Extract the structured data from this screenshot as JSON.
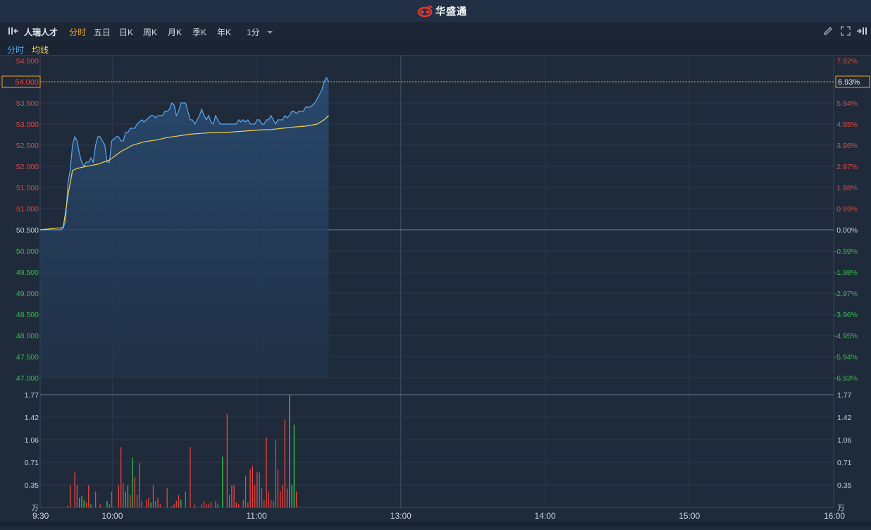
{
  "app": {
    "brand": "华盛通"
  },
  "toolbar": {
    "stock_name": "人瑞人才",
    "tabs": [
      {
        "label": "分时",
        "active": true
      },
      {
        "label": "五日",
        "active": false
      },
      {
        "label": "日K",
        "active": false
      },
      {
        "label": "周K",
        "active": false
      },
      {
        "label": "月K",
        "active": false
      },
      {
        "label": "季K",
        "active": false
      },
      {
        "label": "年K",
        "active": false
      }
    ],
    "interval": "1分",
    "icons": [
      "collapse-left-icon",
      "pencil-icon",
      "fullscreen-icon",
      "expand-right-icon"
    ]
  },
  "subbar": {
    "price_label": "分时",
    "avg_label": "均线"
  },
  "colors": {
    "background": "#1f2a3a",
    "up": "#f0443d",
    "down": "#33c24d",
    "price_line": "#5aa9f0",
    "avg_line": "#f2d04a",
    "highlight": "#f5a623"
  },
  "chart_data": {
    "type": "line",
    "price_axis": {
      "labels": [
        "54.500",
        "54.000",
        "53.500",
        "53.000",
        "52.500",
        "52.000",
        "51.500",
        "51.000",
        "50.500",
        "50.000",
        "49.500",
        "49.000",
        "48.500",
        "48.000",
        "47.500",
        "47.000"
      ],
      "ylim": [
        46.8,
        54.7
      ],
      "prev_close": 50.5,
      "current_label": "54.000"
    },
    "pct_axis": {
      "labels": [
        "7.92%",
        "6.93%",
        "5.94%",
        "4.95%",
        "3.96%",
        "2.97%",
        "1.98%",
        "0.99%",
        "0.00%",
        "-0.99%",
        "-1.98%",
        "-2.97%",
        "-3.96%",
        "-4.95%",
        "-5.94%",
        "-6.93%"
      ],
      "current_label": "6.93%"
    },
    "volume_axis": {
      "labels": [
        "1.77",
        "1.42",
        "1.06",
        "0.71",
        "0.35",
        "万"
      ],
      "ylim": [
        0,
        1.77
      ],
      "unit": "万"
    },
    "time_axis": {
      "labels": [
        "9:30",
        "10:00",
        "11:00",
        "13:00",
        "14:00",
        "15:00",
        "16:00"
      ]
    },
    "price": [
      [
        0,
        50.5
      ],
      [
        9,
        50.5
      ],
      [
        10,
        50.55
      ],
      [
        11,
        50.7
      ],
      [
        12,
        51.6
      ],
      [
        13,
        51.9
      ],
      [
        14,
        52.5
      ],
      [
        15,
        52.7
      ],
      [
        16,
        52.6
      ],
      [
        17,
        52.3
      ],
      [
        18,
        52.1
      ],
      [
        19,
        52.0
      ],
      [
        20,
        52.1
      ],
      [
        21,
        52.1
      ],
      [
        22,
        52.2
      ],
      [
        23,
        52.1
      ],
      [
        24,
        52.5
      ],
      [
        25,
        52.7
      ],
      [
        26,
        52.7
      ],
      [
        27,
        52.6
      ],
      [
        28,
        52.5
      ],
      [
        29,
        52.1
      ],
      [
        30,
        52.1
      ],
      [
        31,
        52.6
      ],
      [
        32,
        52.65
      ],
      [
        33,
        52.7
      ],
      [
        34,
        52.7
      ],
      [
        35,
        52.6
      ],
      [
        36,
        52.6
      ],
      [
        37,
        52.8
      ],
      [
        38,
        52.8
      ],
      [
        39,
        52.9
      ],
      [
        40,
        52.9
      ],
      [
        41,
        52.9
      ],
      [
        42,
        53.0
      ],
      [
        43,
        53.05
      ],
      [
        44,
        53.1
      ],
      [
        45,
        53.05
      ],
      [
        46,
        53.1
      ],
      [
        47,
        53.15
      ],
      [
        48,
        53.2
      ],
      [
        49,
        53.2
      ],
      [
        50,
        53.15
      ],
      [
        51,
        53.2
      ],
      [
        52,
        53.2
      ],
      [
        53,
        53.2
      ],
      [
        54,
        53.3
      ],
      [
        55,
        53.3
      ],
      [
        56,
        53.35
      ],
      [
        57,
        53.5
      ],
      [
        58,
        53.45
      ],
      [
        59,
        53.2
      ],
      [
        60,
        53.3
      ],
      [
        61,
        53.5
      ],
      [
        62,
        53.5
      ],
      [
        63,
        53.5
      ],
      [
        64,
        53.3
      ],
      [
        65,
        53.1
      ],
      [
        66,
        53.1
      ],
      [
        67,
        53.0
      ],
      [
        68,
        53.1
      ],
      [
        69,
        53.2
      ],
      [
        70,
        53.35
      ],
      [
        71,
        53.2
      ],
      [
        72,
        53.1
      ],
      [
        73,
        53.2
      ],
      [
        74,
        53.05
      ],
      [
        75,
        53.0
      ],
      [
        76,
        53.2
      ],
      [
        77,
        53.1
      ],
      [
        78,
        53.0
      ],
      [
        79,
        53.0
      ],
      [
        80,
        53.0
      ],
      [
        81,
        53.0
      ],
      [
        82,
        53.0
      ],
      [
        83,
        53.0
      ],
      [
        84,
        53.0
      ],
      [
        85,
        53.0
      ],
      [
        86,
        53.1
      ],
      [
        87,
        53.05
      ],
      [
        88,
        53.1
      ],
      [
        89,
        53.05
      ],
      [
        90,
        53.1
      ],
      [
        91,
        53.0
      ],
      [
        92,
        53.0
      ],
      [
        93,
        53.0
      ],
      [
        94,
        53.1
      ],
      [
        95,
        53.1
      ],
      [
        96,
        53.0
      ],
      [
        97,
        53.0
      ],
      [
        98,
        53.1
      ],
      [
        99,
        53.1
      ],
      [
        100,
        53.2
      ],
      [
        101,
        53.1
      ],
      [
        102,
        53.0
      ],
      [
        103,
        53.1
      ],
      [
        104,
        53.1
      ],
      [
        105,
        53.1
      ],
      [
        106,
        53.2
      ],
      [
        107,
        53.15
      ],
      [
        108,
        53.2
      ],
      [
        109,
        53.3
      ],
      [
        110,
        53.3
      ],
      [
        111,
        53.25
      ],
      [
        112,
        53.3
      ],
      [
        113,
        53.3
      ],
      [
        114,
        53.3
      ],
      [
        115,
        53.4
      ],
      [
        116,
        53.4
      ],
      [
        117,
        53.4
      ],
      [
        118,
        53.45
      ],
      [
        119,
        53.5
      ],
      [
        120,
        53.6
      ],
      [
        121,
        53.7
      ],
      [
        122,
        53.8
      ],
      [
        123,
        54.0
      ],
      [
        124,
        54.1
      ],
      [
        125,
        54.0
      ]
    ],
    "avg": [
      [
        0,
        50.5
      ],
      [
        10,
        50.55
      ],
      [
        12,
        51.3
      ],
      [
        14,
        51.9
      ],
      [
        16,
        51.95
      ],
      [
        20,
        52.0
      ],
      [
        25,
        52.05
      ],
      [
        30,
        52.15
      ],
      [
        35,
        52.35
      ],
      [
        40,
        52.5
      ],
      [
        45,
        52.58
      ],
      [
        50,
        52.62
      ],
      [
        55,
        52.68
      ],
      [
        60,
        52.72
      ],
      [
        65,
        52.76
      ],
      [
        70,
        52.78
      ],
      [
        75,
        52.8
      ],
      [
        80,
        52.8
      ],
      [
        85,
        52.82
      ],
      [
        90,
        52.84
      ],
      [
        95,
        52.86
      ],
      [
        100,
        52.87
      ],
      [
        105,
        52.9
      ],
      [
        110,
        52.93
      ],
      [
        115,
        52.95
      ],
      [
        120,
        53.0
      ],
      [
        123,
        53.1
      ],
      [
        125,
        53.2
      ]
    ],
    "volume": [
      [
        12,
        0.03,
        "up"
      ],
      [
        13,
        0.35,
        "up"
      ],
      [
        15,
        0.55,
        "up"
      ],
      [
        16,
        0.35,
        "up"
      ],
      [
        17,
        0.15,
        "down"
      ],
      [
        18,
        0.18,
        "down"
      ],
      [
        19,
        0.12,
        "down"
      ],
      [
        20,
        0.08,
        "up"
      ],
      [
        21,
        0.35,
        "up"
      ],
      [
        22,
        0.05,
        "down"
      ],
      [
        24,
        0.25,
        "up"
      ],
      [
        26,
        0.05,
        "up"
      ],
      [
        29,
        0.1,
        "down"
      ],
      [
        30,
        0.05,
        "up"
      ],
      [
        31,
        0.25,
        "up"
      ],
      [
        34,
        0.35,
        "up"
      ],
      [
        35,
        0.95,
        "up"
      ],
      [
        36,
        0.38,
        "up"
      ],
      [
        37,
        0.25,
        "down"
      ],
      [
        38,
        0.35,
        "down"
      ],
      [
        39,
        0.2,
        "up"
      ],
      [
        40,
        0.78,
        "down"
      ],
      [
        41,
        0.48,
        "up"
      ],
      [
        42,
        0.2,
        "up"
      ],
      [
        43,
        0.7,
        "up"
      ],
      [
        44,
        0.1,
        "up"
      ],
      [
        46,
        0.12,
        "up"
      ],
      [
        47,
        0.15,
        "up"
      ],
      [
        48,
        0.08,
        "down"
      ],
      [
        49,
        0.35,
        "up"
      ],
      [
        50,
        0.1,
        "up"
      ],
      [
        51,
        0.15,
        "up"
      ],
      [
        52,
        0.05,
        "up"
      ],
      [
        55,
        0.3,
        "up"
      ],
      [
        57,
        0.02,
        "up"
      ],
      [
        58,
        0.05,
        "up"
      ],
      [
        59,
        0.1,
        "up"
      ],
      [
        60,
        0.2,
        "up"
      ],
      [
        61,
        0.12,
        "down"
      ],
      [
        63,
        0.25,
        "up"
      ],
      [
        65,
        0.95,
        "up"
      ],
      [
        67,
        0.05,
        "up"
      ],
      [
        70,
        0.05,
        "up"
      ],
      [
        71,
        0.1,
        "up"
      ],
      [
        72,
        0.05,
        "up"
      ],
      [
        73,
        0.05,
        "up"
      ],
      [
        74,
        0.08,
        "up"
      ],
      [
        76,
        0.1,
        "up"
      ],
      [
        77,
        0.05,
        "down"
      ],
      [
        79,
        0.8,
        "down"
      ],
      [
        81,
        1.47,
        "up"
      ],
      [
        82,
        0.2,
        "up"
      ],
      [
        83,
        0.35,
        "up"
      ],
      [
        84,
        0.35,
        "up"
      ],
      [
        85,
        0.08,
        "up"
      ],
      [
        86,
        0.05,
        "up"
      ],
      [
        88,
        0.12,
        "up"
      ],
      [
        89,
        0.5,
        "up"
      ],
      [
        90,
        0.08,
        "up"
      ],
      [
        91,
        0.6,
        "up"
      ],
      [
        92,
        0.65,
        "up"
      ],
      [
        93,
        0.35,
        "up"
      ],
      [
        94,
        0.55,
        "up"
      ],
      [
        95,
        0.55,
        "up"
      ],
      [
        96,
        0.3,
        "up"
      ],
      [
        97,
        0.12,
        "up"
      ],
      [
        98,
        1.1,
        "up"
      ],
      [
        99,
        0.25,
        "up"
      ],
      [
        100,
        0.12,
        "up"
      ],
      [
        101,
        0.1,
        "up"
      ],
      [
        102,
        1.05,
        "up"
      ],
      [
        103,
        0.6,
        "up"
      ],
      [
        104,
        0.25,
        "up"
      ],
      [
        105,
        0.35,
        "up"
      ],
      [
        106,
        1.38,
        "up"
      ],
      [
        107,
        0.3,
        "up"
      ],
      [
        108,
        1.77,
        "down"
      ],
      [
        109,
        0.35,
        "down"
      ],
      [
        110,
        1.3,
        "down"
      ],
      [
        111,
        0.25,
        "up"
      ]
    ]
  }
}
